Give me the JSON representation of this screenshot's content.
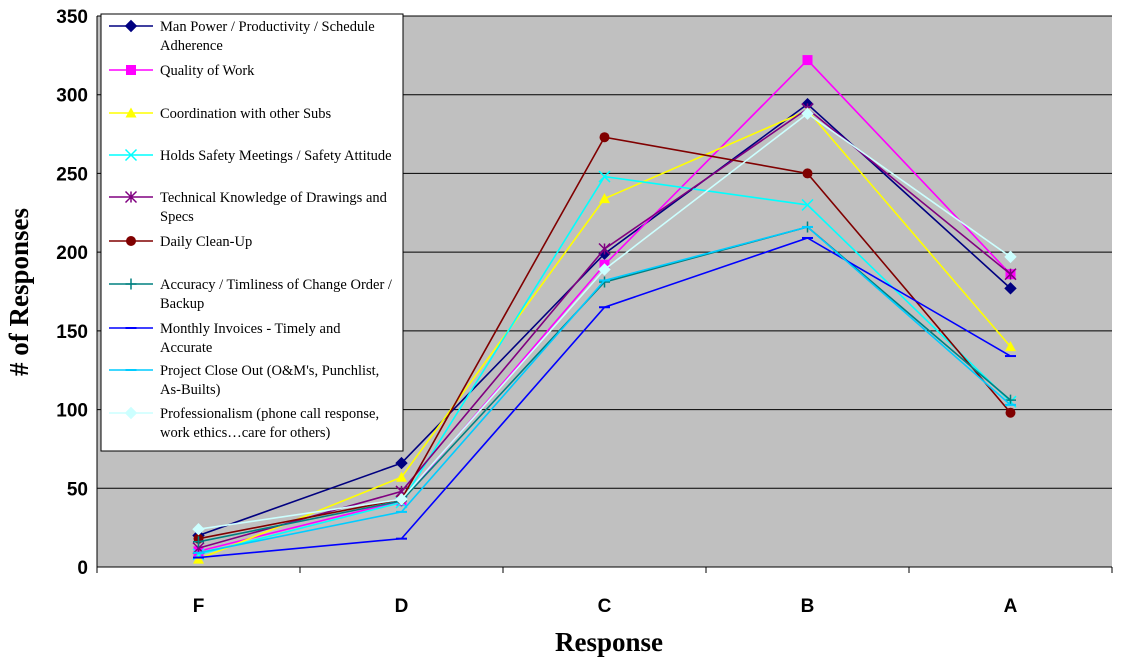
{
  "chart_data": {
    "type": "line",
    "xlabel": "Response",
    "ylabel": "# of Responses",
    "categories": [
      "F",
      "D",
      "C",
      "B",
      "A"
    ],
    "ylim": [
      0,
      350
    ],
    "yticks": [
      0,
      50,
      100,
      150,
      200,
      250,
      300,
      350
    ],
    "grid": true,
    "plot_background": "#c0c0c0",
    "legend_position": "top-left",
    "series": [
      {
        "name": "Man Power / Productivity / Schedule Adherence",
        "color": "#000080",
        "marker": "diamond",
        "values": [
          20,
          66,
          199,
          294,
          177
        ]
      },
      {
        "name": "Quality of Work",
        "color": "#ff00ff",
        "marker": "square",
        "values": [
          10,
          42,
          192,
          322,
          186
        ]
      },
      {
        "name": "Coordination with other Subs",
        "color": "#ffff00",
        "marker": "triangle",
        "values": [
          5,
          57,
          234,
          290,
          140
        ]
      },
      {
        "name": "Holds Safety Meetings / Safety Attitude",
        "color": "#00ffff",
        "marker": "x",
        "values": [
          8,
          41,
          248,
          230,
          105
        ]
      },
      {
        "name": "Technical Knowledge of Drawings and Specs",
        "color": "#800080",
        "marker": "asterisk",
        "values": [
          12,
          48,
          202,
          291,
          186
        ]
      },
      {
        "name": "Daily Clean-Up",
        "color": "#800000",
        "marker": "circle",
        "values": [
          18,
          43,
          273,
          250,
          98
        ]
      },
      {
        "name": "Accuracy / Timliness of Change Order / Backup",
        "color": "#008080",
        "marker": "plus",
        "values": [
          16,
          42,
          181,
          216,
          106
        ]
      },
      {
        "name": "Monthly Invoices - Timely and Accurate",
        "color": "#0000ff",
        "marker": "dash",
        "values": [
          6,
          18,
          165,
          209,
          134
        ]
      },
      {
        "name": "Project Close Out (O&M's, Punchlist, As-Builts)",
        "color": "#00ccff",
        "marker": "dash",
        "values": [
          9,
          35,
          182,
          216,
          103
        ]
      },
      {
        "name": "Professionalism (phone call response, work ethics…care for others)",
        "color": "#ccffff",
        "marker": "diamond",
        "values": [
          24,
          43,
          189,
          288,
          197
        ]
      }
    ]
  },
  "legend": {
    "entries": [
      {
        "lines": [
          "Man Power / Productivity / Schedule",
          "Adherence"
        ]
      },
      {
        "lines": [
          "Quality of Work"
        ]
      },
      {
        "lines": [
          "Coordination with other Subs"
        ]
      },
      {
        "lines": [
          "Holds Safety Meetings / Safety Attitude"
        ]
      },
      {
        "lines": [
          "Technical Knowledge of Drawings and",
          "Specs"
        ]
      },
      {
        "lines": [
          "Daily Clean-Up"
        ]
      },
      {
        "lines": [
          "Accuracy / Timliness of Change Order /",
          "Backup"
        ]
      },
      {
        "lines": [
          "Monthly Invoices - Timely and",
          "Accurate"
        ]
      },
      {
        "lines": [
          "Project Close Out (O&M's, Punchlist,",
          "As-Builts)"
        ]
      },
      {
        "lines": [
          "Professionalism (phone call response,",
          "work ethics…care for others)"
        ]
      }
    ]
  }
}
